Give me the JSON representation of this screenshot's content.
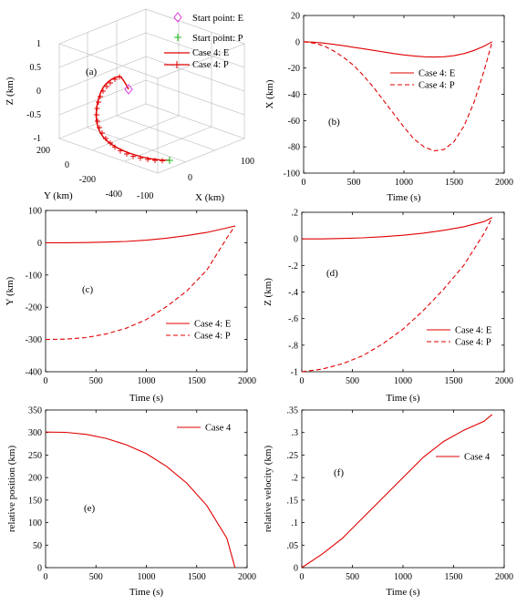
{
  "chart_data": [
    {
      "id": "a",
      "type": "line3d",
      "panel_label": "(a)",
      "xlabel": "X (km)",
      "ylabel": "Y (km)",
      "zlabel": "Z (km)",
      "x_ticks": [
        "100",
        "0",
        "-100"
      ],
      "y_ticks": [
        "200",
        "0",
        "-200",
        "-400"
      ],
      "z_ticks": [
        "1",
        "0.5",
        "0",
        "-0.5",
        "-1"
      ],
      "legend": [
        {
          "label": "Start point: E",
          "marker": "diamond",
          "color": "#dd33dd"
        },
        {
          "label": "Start point: P",
          "marker": "plus",
          "color": "#22bb22"
        },
        {
          "label": "Case 4: E",
          "style": "solid",
          "color": "#e00000"
        },
        {
          "label": "Case 4: P",
          "style": "solid-plus",
          "color": "#e00000"
        }
      ],
      "series": [
        {
          "name": "Case 4: E",
          "x": [
            0,
            -3,
            -7,
            -10,
            -13,
            -12,
            -8,
            0
          ],
          "y": [
            0,
            2,
            8,
            18,
            30,
            40,
            48,
            50
          ],
          "z": [
            0,
            0.01,
            0.02,
            0.04,
            0.07,
            0.1,
            0.13,
            0.16
          ]
        },
        {
          "name": "Case 4: P",
          "x": [
            0,
            -10,
            -30,
            -55,
            -80,
            -84,
            -60,
            -20,
            0
          ],
          "y": [
            -300,
            -295,
            -270,
            -230,
            -170,
            -110,
            -50,
            20,
            50
          ],
          "z": [
            -1,
            -0.97,
            -0.88,
            -0.74,
            -0.56,
            -0.38,
            -0.2,
            -0.02,
            0.16
          ]
        }
      ]
    },
    {
      "id": "b",
      "type": "line",
      "panel_label": "(b)",
      "xlabel": "Time (s)",
      "ylabel": "X (km)",
      "xlim": [
        0,
        2000
      ],
      "ylim": [
        -100,
        20
      ],
      "xticks": [
        0,
        500,
        1000,
        1500,
        2000
      ],
      "yticks": [
        20,
        0,
        -20,
        -40,
        -60,
        -80,
        -100
      ],
      "legend": [
        "Case 4: E",
        "Case 4: P"
      ],
      "series": [
        {
          "name": "Case 4: E",
          "style": "solid",
          "x": [
            0,
            100,
            200,
            300,
            400,
            500,
            600,
            700,
            800,
            900,
            1000,
            1100,
            1200,
            1300,
            1400,
            1500,
            1600,
            1700,
            1800,
            1880
          ],
          "y": [
            0,
            -0.3,
            -1,
            -2,
            -3,
            -4.2,
            -5.4,
            -6.6,
            -7.8,
            -9,
            -10,
            -10.8,
            -11.4,
            -11.6,
            -11.4,
            -10.6,
            -9,
            -6.6,
            -3.3,
            0
          ]
        },
        {
          "name": "Case 4: P",
          "style": "dashed",
          "x": [
            0,
            100,
            200,
            300,
            400,
            500,
            600,
            700,
            800,
            900,
            1000,
            1100,
            1200,
            1300,
            1400,
            1500,
            1600,
            1700,
            1800,
            1880
          ],
          "y": [
            0,
            -1,
            -3,
            -7,
            -12,
            -18,
            -26,
            -35,
            -45,
            -55,
            -65,
            -74,
            -80,
            -83,
            -82,
            -76,
            -64,
            -46,
            -22,
            0
          ]
        }
      ]
    },
    {
      "id": "c",
      "type": "line",
      "panel_label": "(c)",
      "xlabel": "Time (s)",
      "ylabel": "Y (km)",
      "xlim": [
        0,
        2000
      ],
      "ylim": [
        -400,
        100
      ],
      "xticks": [
        0,
        500,
        1000,
        1500,
        2000
      ],
      "yticks": [
        100,
        0,
        -100,
        -200,
        -300,
        -400
      ],
      "legend": [
        "Case 4: E",
        "Case 4: P"
      ],
      "series": [
        {
          "name": "Case 4: E",
          "style": "solid",
          "x": [
            0,
            200,
            400,
            600,
            800,
            1000,
            1200,
            1400,
            1600,
            1800,
            1880
          ],
          "y": [
            0,
            0,
            0.5,
            2,
            4,
            8,
            14,
            22,
            32,
            46,
            52
          ]
        },
        {
          "name": "Case 4: P",
          "style": "dashed",
          "x": [
            0,
            200,
            400,
            600,
            800,
            1000,
            1200,
            1400,
            1600,
            1800,
            1880
          ],
          "y": [
            -300,
            -299,
            -294,
            -283,
            -265,
            -238,
            -198,
            -150,
            -85,
            15,
            52
          ]
        }
      ]
    },
    {
      "id": "d",
      "type": "line",
      "panel_label": "(d)",
      "xlabel": "Time (s)",
      "ylabel": "Z (km)",
      "xlim": [
        0,
        2000
      ],
      "ylim": [
        -1,
        0.2
      ],
      "xticks": [
        0,
        500,
        1000,
        1500,
        2000
      ],
      "yticks": [
        0.2,
        0,
        -0.2,
        -0.4,
        -0.6,
        -0.8,
        -1
      ],
      "legend": [
        "Case 4: E",
        "Case 4: P"
      ],
      "series": [
        {
          "name": "Case 4: E",
          "style": "solid",
          "x": [
            0,
            200,
            400,
            600,
            800,
            1000,
            1200,
            1400,
            1600,
            1800,
            1880
          ],
          "y": [
            0,
            0,
            0.003,
            0.008,
            0.016,
            0.027,
            0.043,
            0.064,
            0.091,
            0.13,
            0.16
          ]
        },
        {
          "name": "Case 4: P",
          "style": "dashed",
          "x": [
            0,
            200,
            400,
            600,
            800,
            1000,
            1200,
            1400,
            1600,
            1800,
            1880
          ],
          "y": [
            -1,
            -0.98,
            -0.94,
            -0.88,
            -0.79,
            -0.68,
            -0.54,
            -0.38,
            -0.2,
            0.04,
            0.16
          ]
        }
      ]
    },
    {
      "id": "e",
      "type": "line",
      "panel_label": "(e)",
      "xlabel": "Time (s)",
      "ylabel": "relative position (km)",
      "xlim": [
        0,
        2000
      ],
      "ylim": [
        0,
        350
      ],
      "xticks": [
        0,
        500,
        1000,
        1500,
        2000
      ],
      "yticks": [
        350,
        300,
        250,
        200,
        150,
        100,
        50,
        0
      ],
      "legend": [
        "Case 4"
      ],
      "series": [
        {
          "name": "Case 4",
          "style": "solid",
          "x": [
            0,
            200,
            400,
            600,
            800,
            1000,
            1200,
            1400,
            1600,
            1800,
            1880
          ],
          "y": [
            301,
            300.5,
            296,
            287,
            273,
            253,
            225,
            188,
            138,
            65,
            0
          ]
        }
      ]
    },
    {
      "id": "f",
      "type": "line",
      "panel_label": "(f)",
      "xlabel": "Time (s)",
      "ylabel": "relative velocity (km)",
      "xlim": [
        0,
        2000
      ],
      "ylim": [
        0,
        0.35
      ],
      "xticks": [
        0,
        500,
        1000,
        1500,
        2000
      ],
      "yticks": [
        0.35,
        0.3,
        0.25,
        0.2,
        0.15,
        0.1,
        0.05,
        0
      ],
      "legend": [
        "Case 4"
      ],
      "series": [
        {
          "name": "Case 4",
          "style": "solid",
          "x": [
            0,
            200,
            400,
            600,
            800,
            1000,
            1200,
            1400,
            1600,
            1800,
            1880
          ],
          "y": [
            0,
            0.03,
            0.065,
            0.11,
            0.155,
            0.2,
            0.245,
            0.28,
            0.305,
            0.325,
            0.34
          ]
        }
      ]
    }
  ]
}
